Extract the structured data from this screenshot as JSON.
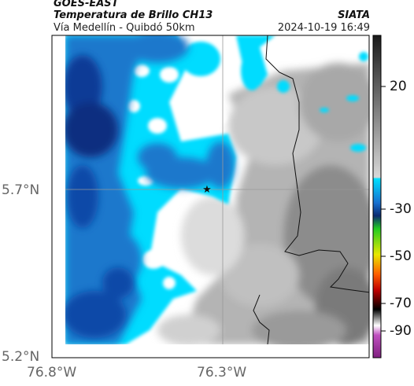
{
  "header": {
    "satellite": "GOES-EAST",
    "product": "Temperatura de Brillo CH13",
    "route": "Vía Medellín - Quibdó 50km",
    "organization": "SIATA",
    "timestamp": "2024-10-19 16:49"
  },
  "map": {
    "lat_labels": [
      "5.7°N",
      "5.2°N"
    ],
    "lon_labels": [
      "76.8°W",
      "76.3°W"
    ],
    "gridlines": true,
    "marker": "star"
  },
  "colorbar": {
    "ticks": [
      "20",
      "-30",
      "-50",
      "-70",
      "-90"
    ],
    "colors": {
      "warm_top": "#1a1a1a",
      "gray_mid": "#9a9a9a",
      "cyan": "#00e0ff",
      "blue": "#1060c0",
      "dark_blue": "#0a2a70",
      "green": "#22cc22",
      "yellow": "#e8e800",
      "orange": "#ff6000",
      "red": "#c00000",
      "black": "#000000",
      "magenta": "#c050c0"
    }
  }
}
